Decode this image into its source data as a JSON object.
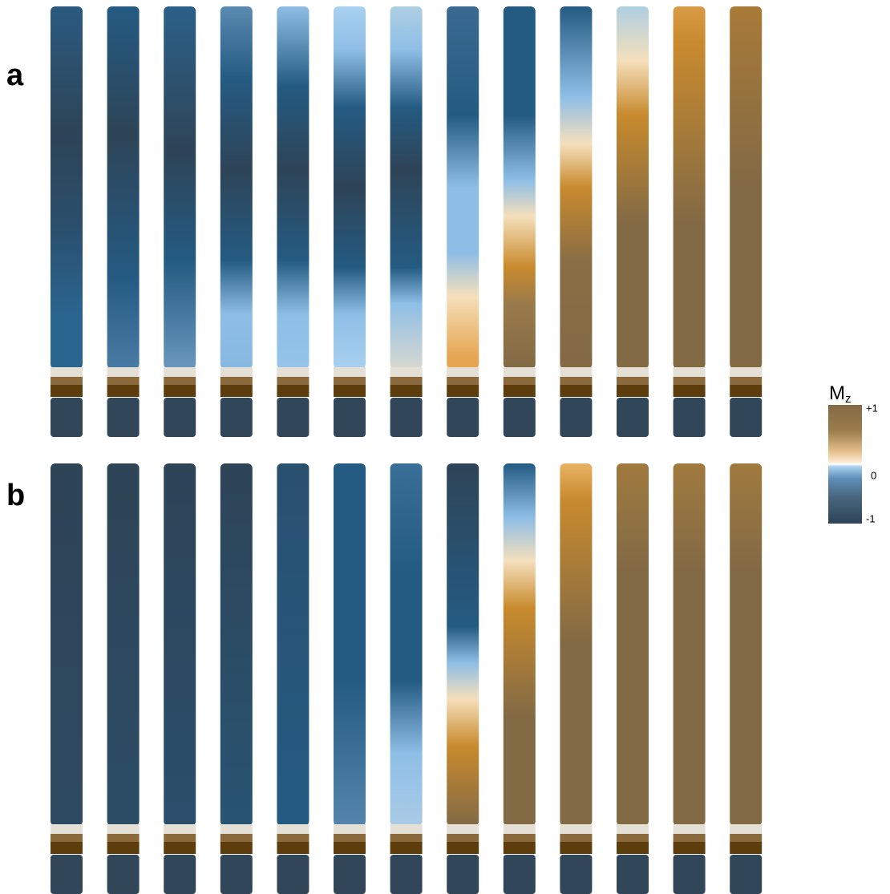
{
  "panels": [
    {
      "label": "a"
    },
    {
      "label": "b"
    }
  ],
  "colorbar": {
    "label": "M",
    "label_subscript": "z",
    "ticks": [
      "+1",
      "0",
      "-1"
    ]
  }
}
